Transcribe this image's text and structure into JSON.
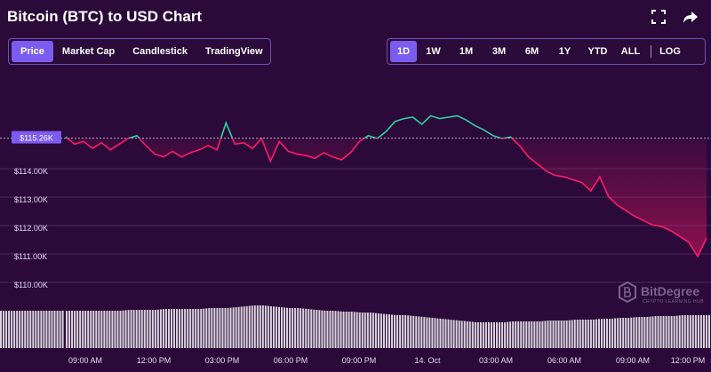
{
  "header": {
    "title": "Bitcoin (BTC) to USD Chart",
    "icons": [
      "fullscreen-icon",
      "share-icon"
    ]
  },
  "view_tabs": [
    {
      "label": "Price",
      "active": true
    },
    {
      "label": "Market Cap",
      "active": false
    },
    {
      "label": "Candlestick",
      "active": false
    },
    {
      "label": "TradingView",
      "active": false
    }
  ],
  "range_tabs": [
    {
      "label": "1D",
      "active": true
    },
    {
      "label": "1W",
      "active": false
    },
    {
      "label": "1M",
      "active": false
    },
    {
      "label": "3M",
      "active": false
    },
    {
      "label": "6M",
      "active": false
    },
    {
      "label": "1Y",
      "active": false
    },
    {
      "label": "YTD",
      "active": false
    },
    {
      "label": "ALL",
      "active": false
    }
  ],
  "log_label": "LOG",
  "watermark": {
    "name": "BitDegree",
    "tagline": "CRYPTO LEARNING HUB"
  },
  "colors": {
    "background": "#2b0a3a",
    "accent": "#7b5cf0",
    "down_line": "#ff1a6b",
    "up_line": "#2fd3a0",
    "volume": "#d9d3dc"
  },
  "chart_data": {
    "type": "line",
    "title": "",
    "xlabel": "",
    "ylabel": "",
    "open_price": 115260,
    "current_price_label": "$115.26K",
    "ylim": [
      109500,
      117000
    ],
    "y_ticks": [
      {
        "value": 114000,
        "label": "$114.00K"
      },
      {
        "value": 113000,
        "label": "$113.00K"
      },
      {
        "value": 112000,
        "label": "$112.00K"
      },
      {
        "value": 111000,
        "label": "$111.00K"
      },
      {
        "value": 110000,
        "label": "$110.00K"
      }
    ],
    "x_ticks": [
      "09:00 AM",
      "12:00 PM",
      "03:00 PM",
      "06:00 PM",
      "09:00 PM",
      "14. Oct",
      "03:00 AM",
      "06:00 AM",
      "09:00 AM",
      "12:00 PM"
    ],
    "x": [
      0,
      1,
      2,
      3,
      4,
      5,
      6,
      7,
      8,
      9,
      10,
      11,
      12,
      13,
      14,
      15,
      16,
      17,
      18,
      19,
      20,
      21,
      22,
      23,
      24,
      25,
      26,
      27,
      28,
      29,
      30,
      31,
      32,
      33,
      34,
      35,
      36,
      37,
      38,
      39,
      40,
      41,
      42,
      43,
      44,
      45,
      46,
      47,
      48,
      49,
      50,
      51,
      52,
      53,
      54,
      55,
      56,
      57,
      58,
      59,
      60,
      61,
      62,
      63,
      64,
      65,
      66,
      67,
      68,
      69,
      70,
      71,
      72
    ],
    "series": [
      {
        "values": [
          115300,
          115050,
          115150,
          114900,
          115100,
          114850,
          115050,
          115250,
          115350,
          115000,
          114700,
          114600,
          114800,
          114600,
          114750,
          114850,
          115000,
          114850,
          115800,
          115050,
          115100,
          114900,
          115250,
          114450,
          115150,
          114800,
          114700,
          114650,
          114550,
          114750,
          114600,
          114500,
          114750,
          115150,
          115350,
          115250,
          115500,
          115850,
          115950,
          116000,
          115750,
          116050,
          115950,
          116000,
          116050,
          115900,
          115700,
          115550,
          115350,
          115250,
          115300,
          115000,
          114600,
          114350,
          114100,
          113950,
          113900,
          113800,
          113700,
          113400,
          113900,
          113200,
          112900,
          112700,
          112500,
          112350,
          112200,
          112150,
          112000,
          111800,
          111600,
          111100,
          111750
        ]
      }
    ],
    "volume": [
      0.42,
      0.42,
      0.42,
      0.42,
      0.42,
      0.42,
      0.42,
      0.43,
      0.43,
      0.43,
      0.43,
      0.44,
      0.44,
      0.44,
      0.44,
      0.44,
      0.45,
      0.45,
      0.45,
      0.46,
      0.47,
      0.48,
      0.48,
      0.47,
      0.46,
      0.45,
      0.45,
      0.44,
      0.43,
      0.42,
      0.42,
      0.41,
      0.41,
      0.4,
      0.4,
      0.39,
      0.38,
      0.37,
      0.37,
      0.36,
      0.35,
      0.34,
      0.33,
      0.32,
      0.31,
      0.3,
      0.29,
      0.29,
      0.29,
      0.29,
      0.3,
      0.3,
      0.3,
      0.3,
      0.31,
      0.31,
      0.31,
      0.32,
      0.32,
      0.32,
      0.33,
      0.33,
      0.34,
      0.34,
      0.35,
      0.35,
      0.36,
      0.36,
      0.36,
      0.37,
      0.37,
      0.37,
      0.37
    ]
  }
}
